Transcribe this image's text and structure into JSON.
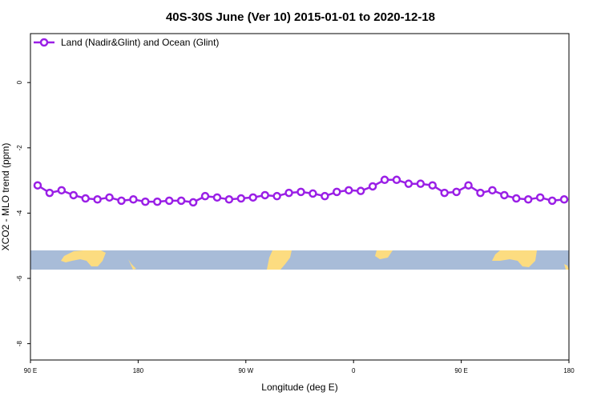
{
  "chart_data": {
    "type": "line",
    "title": "40S-30S June (Ver 10)   2015-01-01 to 2020-12-18",
    "xlabel": "Longitude (deg E)",
    "ylabel": "XCO2 - MLO trend (ppm)",
    "xlim": [
      90,
      540
    ],
    "ylim": [
      -8.5,
      1.5
    ],
    "xticks": [
      {
        "value": 90,
        "label": "90 E"
      },
      {
        "value": 180,
        "label": "180"
      },
      {
        "value": 270,
        "label": "90 W"
      },
      {
        "value": 360,
        "label": "0"
      },
      {
        "value": 450,
        "label": "90 E"
      },
      {
        "value": 540,
        "label": "180"
      }
    ],
    "yticks": [
      {
        "value": 0,
        "label": "0"
      },
      {
        "value": -2,
        "label": "-2"
      },
      {
        "value": -4,
        "label": "-4"
      },
      {
        "value": -6,
        "label": "-6"
      },
      {
        "value": -8,
        "label": "-8"
      }
    ],
    "grid": false,
    "legend_position": "top-left",
    "series": [
      {
        "name": "Land (Nadir&Glint) and Ocean (Glint)",
        "color": "#9a1fe6",
        "x": [
          96,
          106,
          116,
          126,
          136,
          146,
          156,
          166,
          176,
          186,
          196,
          206,
          216,
          226,
          236,
          246,
          256,
          266,
          276,
          286,
          296,
          306,
          316,
          326,
          336,
          346,
          356,
          366,
          376,
          386,
          396,
          406,
          416,
          426,
          436,
          446,
          456,
          466,
          476,
          486,
          496,
          506,
          516,
          526,
          536
        ],
        "y": [
          -3.15,
          -3.38,
          -3.3,
          -3.45,
          -3.55,
          -3.58,
          -3.52,
          -3.62,
          -3.58,
          -3.65,
          -3.65,
          -3.62,
          -3.62,
          -3.67,
          -3.48,
          -3.52,
          -3.58,
          -3.55,
          -3.52,
          -3.45,
          -3.48,
          -3.38,
          -3.35,
          -3.4,
          -3.48,
          -3.35,
          -3.3,
          -3.32,
          -3.18,
          -2.98,
          -2.98,
          -3.1,
          -3.1,
          -3.15,
          -3.38,
          -3.35,
          -3.15,
          -3.38,
          -3.3,
          -3.45,
          -3.55,
          -3.58,
          -3.52,
          -3.62,
          -3.58
        ]
      }
    ],
    "colors": {
      "ocean": "#a8bcd8",
      "land": "#fcdc80",
      "axis": "#000000"
    }
  }
}
